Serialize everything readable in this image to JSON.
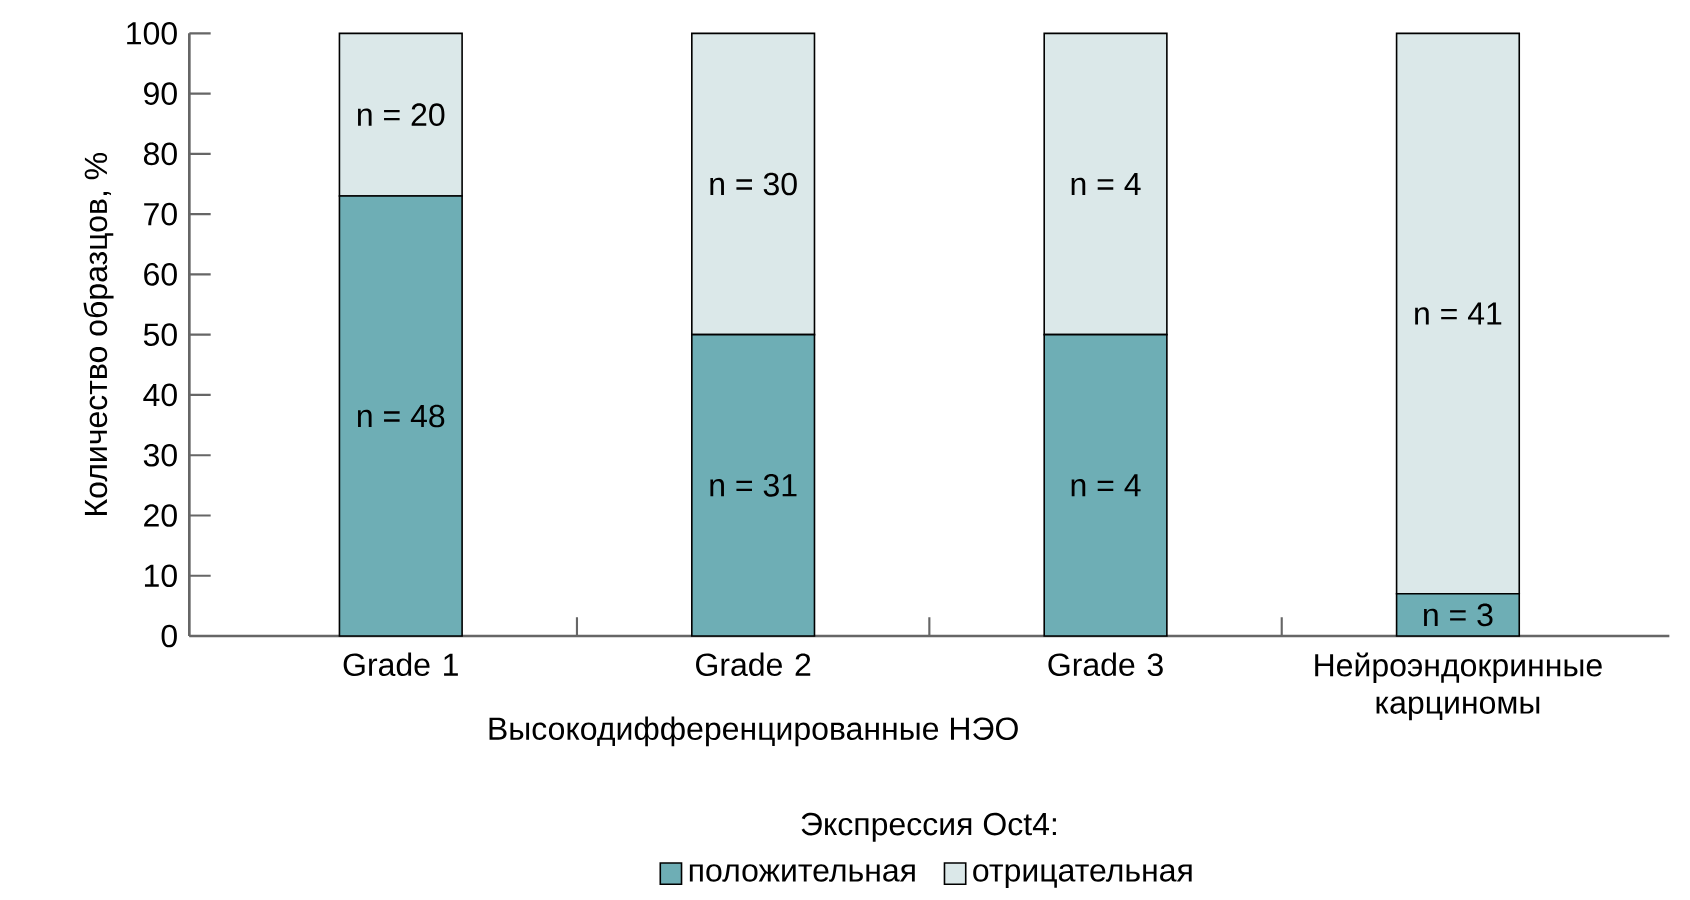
{
  "chart_data": {
    "type": "bar",
    "stacked": true,
    "xlabel": "Высокодифференцированные НЭО",
    "ylabel": "Количество образцов, %",
    "legend_title": "Экспрессия Oct4:",
    "categories": [
      "Grade 1",
      "Grade 2",
      "Grade 3",
      "Нейроэндокринные карциномы"
    ],
    "series": [
      {
        "name": "положительная",
        "color": "#6eaeb5",
        "values": [
          73,
          50,
          50,
          7
        ]
      },
      {
        "name": "отрицательная",
        "color": "#dbe8e9",
        "values": [
          27,
          50,
          50,
          93
        ]
      }
    ],
    "annotations": [
      "n = 48",
      "n = 20",
      "n = 31",
      "n = 30",
      "n = 4",
      "n = 4",
      "n = 3",
      "n = 41"
    ],
    "ylim": [
      0,
      100
    ],
    "yticks": [
      0,
      10,
      20,
      30,
      40,
      50,
      60,
      70,
      80,
      90,
      100
    ],
    "legend": "bottom"
  }
}
